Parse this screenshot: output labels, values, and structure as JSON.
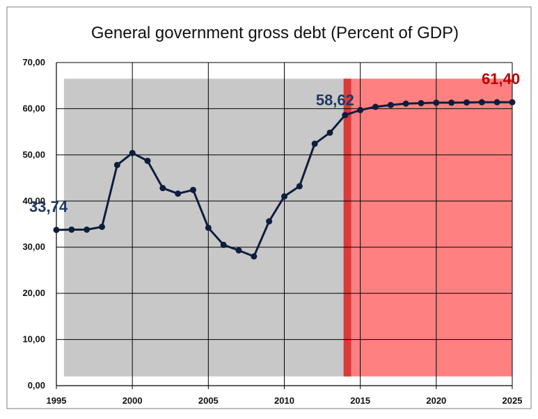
{
  "chart_data": {
    "type": "line",
    "title": "General government gross debt (Percent of GDP)",
    "xlabel": "",
    "ylabel": "",
    "xlim": [
      1995,
      2025
    ],
    "ylim": [
      0,
      70
    ],
    "grid": true,
    "x_ticks": [
      1995,
      2000,
      2005,
      2010,
      2015,
      2020,
      2025
    ],
    "y_ticks": [
      "0,00",
      "10,00",
      "20,00",
      "30,00",
      "40,00",
      "50,00",
      "60,00",
      "70,00"
    ],
    "series": [
      {
        "x": [
          1995,
          1996,
          1997,
          1998,
          1999,
          2000,
          2001,
          2002,
          2003,
          2004,
          2005,
          2006,
          2007,
          2008,
          2009,
          2010,
          2011,
          2012,
          2013,
          2014,
          2015,
          2016,
          2017,
          2018,
          2019,
          2020,
          2021,
          2022,
          2023,
          2024,
          2025
        ],
        "values": [
          33.74,
          33.8,
          33.8,
          34.4,
          47.8,
          50.4,
          48.7,
          42.8,
          41.6,
          42.4,
          34.2,
          30.5,
          29.3,
          28.0,
          35.6,
          41.0,
          43.2,
          52.4,
          54.8,
          58.62,
          59.7,
          60.4,
          60.8,
          61.1,
          61.2,
          61.3,
          61.3,
          61.35,
          61.4,
          61.4,
          61.4
        ]
      }
    ],
    "regions": [
      {
        "x_start": 1995.5,
        "x_end": 2014,
        "y_end": 66.5,
        "color": "#c8c8c8"
      },
      {
        "x_start": 2014,
        "x_end": 2025,
        "y_end": 66.5,
        "color": "#ff8080"
      }
    ],
    "divider": {
      "x_start": 2013.9,
      "x_end": 2014.4,
      "y_end": 66.5,
      "color": "#d93a3a"
    },
    "annotations": [
      {
        "text": "33,74",
        "x": 1995,
        "y": 33.74,
        "color": "#1f3864"
      },
      {
        "text": "58,62",
        "x": 2014,
        "y": 58.62,
        "color": "#1f3864"
      },
      {
        "text": "61,40",
        "x": 2025,
        "y": 61.4,
        "color": "#c00000"
      }
    ],
    "line_color": "#0d1d3d"
  }
}
